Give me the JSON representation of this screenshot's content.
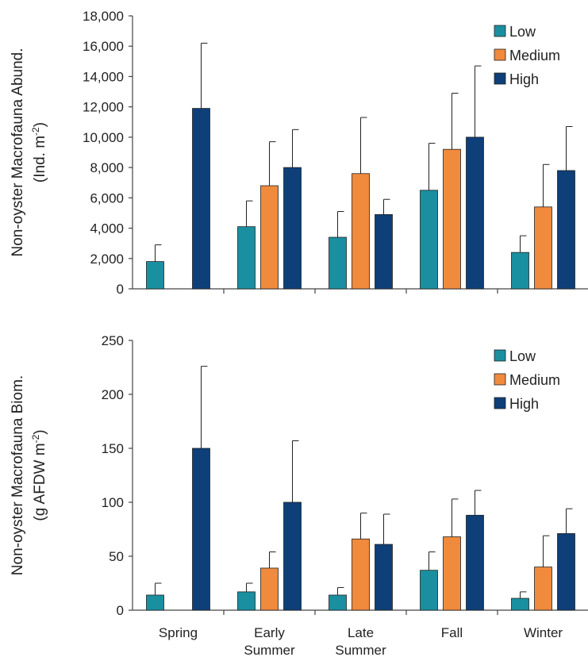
{
  "chart_data": [
    {
      "type": "bar",
      "categories": [
        [
          "Spring"
        ],
        [
          "Early",
          "Summer"
        ],
        [
          "Late",
          "Summer"
        ],
        [
          "Fall"
        ],
        [
          "Winter"
        ]
      ],
      "ylabel_lines": [
        "Non-oyster Macrofauna Abund.",
        "(Ind. m",
        "-2",
        ")"
      ],
      "ylim": [
        0,
        18000
      ],
      "yticks": [
        0,
        2000,
        4000,
        6000,
        8000,
        10000,
        12000,
        14000,
        16000,
        18000
      ],
      "ytick_labels": [
        "0",
        "2,000",
        "4,000",
        "6,000",
        "8,000",
        "10,000",
        "12,000",
        "14,000",
        "16,000",
        "18,000"
      ],
      "legend_position": "top-right",
      "series": [
        {
          "name": "Low",
          "color": "#1a8fa0",
          "values": [
            1800,
            4100,
            3400,
            6500,
            2400
          ],
          "errors": [
            1100,
            1700,
            1700,
            3100,
            1100
          ]
        },
        {
          "name": "Medium",
          "color": "#f08a3c",
          "values": [
            null,
            6800,
            7600,
            9200,
            5400
          ],
          "errors": [
            null,
            2900,
            3700,
            3700,
            2800
          ]
        },
        {
          "name": "High",
          "color": "#0e3f78",
          "values": [
            11900,
            8000,
            4900,
            10000,
            7800
          ],
          "errors": [
            4300,
            2500,
            1000,
            4700,
            2900
          ]
        }
      ]
    },
    {
      "type": "bar",
      "categories": [
        [
          "Spring"
        ],
        [
          "Early",
          "Summer"
        ],
        [
          "Late",
          "Summer"
        ],
        [
          "Fall"
        ],
        [
          "Winter"
        ]
      ],
      "ylabel_lines": [
        "Non-oyster Macrofauna Biom.",
        "(g AFDW m",
        "-2",
        ")"
      ],
      "ylim": [
        0,
        250
      ],
      "yticks": [
        0,
        50,
        100,
        150,
        200,
        250
      ],
      "ytick_labels": [
        "0",
        "50",
        "100",
        "150",
        "200",
        "250"
      ],
      "legend_position": "top-right",
      "series": [
        {
          "name": "Low",
          "color": "#1a8fa0",
          "values": [
            14,
            17,
            14,
            37,
            11
          ],
          "errors": [
            11,
            8,
            7,
            17,
            6
          ]
        },
        {
          "name": "Medium",
          "color": "#f08a3c",
          "values": [
            null,
            39,
            66,
            68,
            40
          ],
          "errors": [
            null,
            15,
            24,
            35,
            29
          ]
        },
        {
          "name": "High",
          "color": "#0e3f78",
          "values": [
            150,
            100,
            61,
            88,
            71
          ],
          "errors": [
            76,
            57,
            28,
            23,
            23
          ]
        }
      ]
    }
  ]
}
